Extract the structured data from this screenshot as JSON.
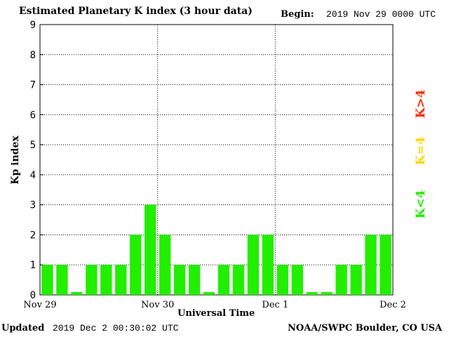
{
  "header": {
    "title": "Estimated Planetary K index (3 hour data)",
    "begin_label": "Begin:",
    "begin_value": "2019 Nov 29 0000 UTC"
  },
  "footer": {
    "updated_label": "Updated",
    "updated_value": "2019 Dec  2 00:30:02 UTC",
    "credit": "NOAA/SWPC Boulder, CO USA"
  },
  "legend": {
    "high": {
      "label": "K>4",
      "color": "#ff2a00"
    },
    "equal": {
      "label": "K=4",
      "color": "#ffd700"
    },
    "low": {
      "label": "K<4",
      "color": "#22ee00"
    }
  },
  "chart_data": {
    "type": "bar",
    "xlabel": "Universal Time",
    "ylabel": "Kp index",
    "ylim": [
      0,
      9
    ],
    "yticks": [
      0,
      1,
      2,
      3,
      4,
      5,
      6,
      7,
      8,
      9
    ],
    "xtick_labels": [
      "Nov 29",
      "Nov 30",
      "Dec 1",
      "Dec 2"
    ],
    "grid": true,
    "bar_color": "#22ee00",
    "values": [
      1,
      1,
      0,
      1,
      1,
      1,
      2,
      3,
      2,
      1,
      1,
      0,
      1,
      1,
      2,
      2,
      1,
      1,
      0,
      0,
      1,
      1,
      2,
      2
    ]
  }
}
